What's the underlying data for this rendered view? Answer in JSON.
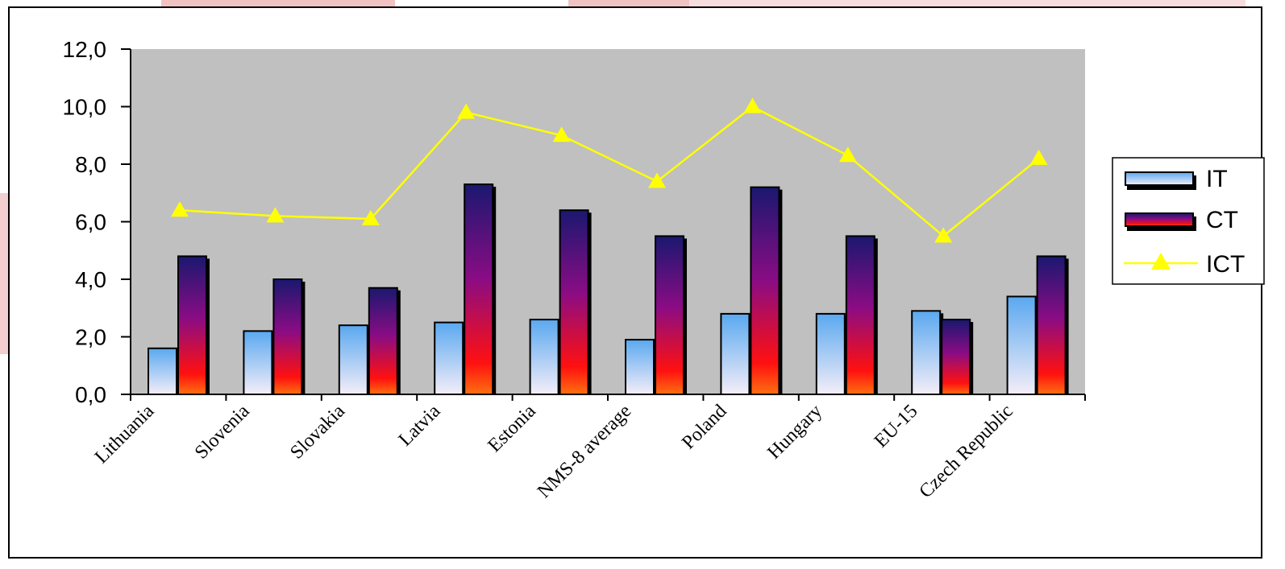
{
  "chart_data": {
    "type": "bar",
    "categories": [
      "Lithuania",
      "Slovenia",
      "Slovakia",
      "Latvia",
      "Estonia",
      "NMS-8 average",
      "Poland",
      "Hungary",
      "EU-15",
      "Czech Republic"
    ],
    "series": [
      {
        "name": "IT",
        "type": "bar",
        "color": "#5aa8f0",
        "values": [
          1.6,
          2.2,
          2.4,
          2.5,
          2.6,
          1.9,
          2.8,
          2.8,
          2.9,
          3.4
        ]
      },
      {
        "name": "CT",
        "type": "bar",
        "color": "#8b0080",
        "values": [
          4.8,
          4.0,
          3.7,
          7.3,
          6.4,
          5.5,
          7.2,
          5.5,
          2.6,
          4.8
        ]
      },
      {
        "name": "ICT",
        "type": "line",
        "color": "#ffff00",
        "values": [
          6.4,
          6.2,
          6.1,
          9.8,
          9.0,
          7.4,
          10.0,
          8.3,
          5.5,
          8.2
        ]
      }
    ],
    "ylim": [
      0,
      12
    ],
    "yticks": [
      "0,0",
      "2,0",
      "4,0",
      "6,0",
      "8,0",
      "10,0",
      "12,0"
    ],
    "xlabel": "",
    "ylabel": "",
    "title": "",
    "grid": false,
    "plot_background": "#c0c0c0",
    "legend": {
      "position": "right",
      "entries": [
        "IT",
        "CT",
        "ICT"
      ]
    }
  }
}
